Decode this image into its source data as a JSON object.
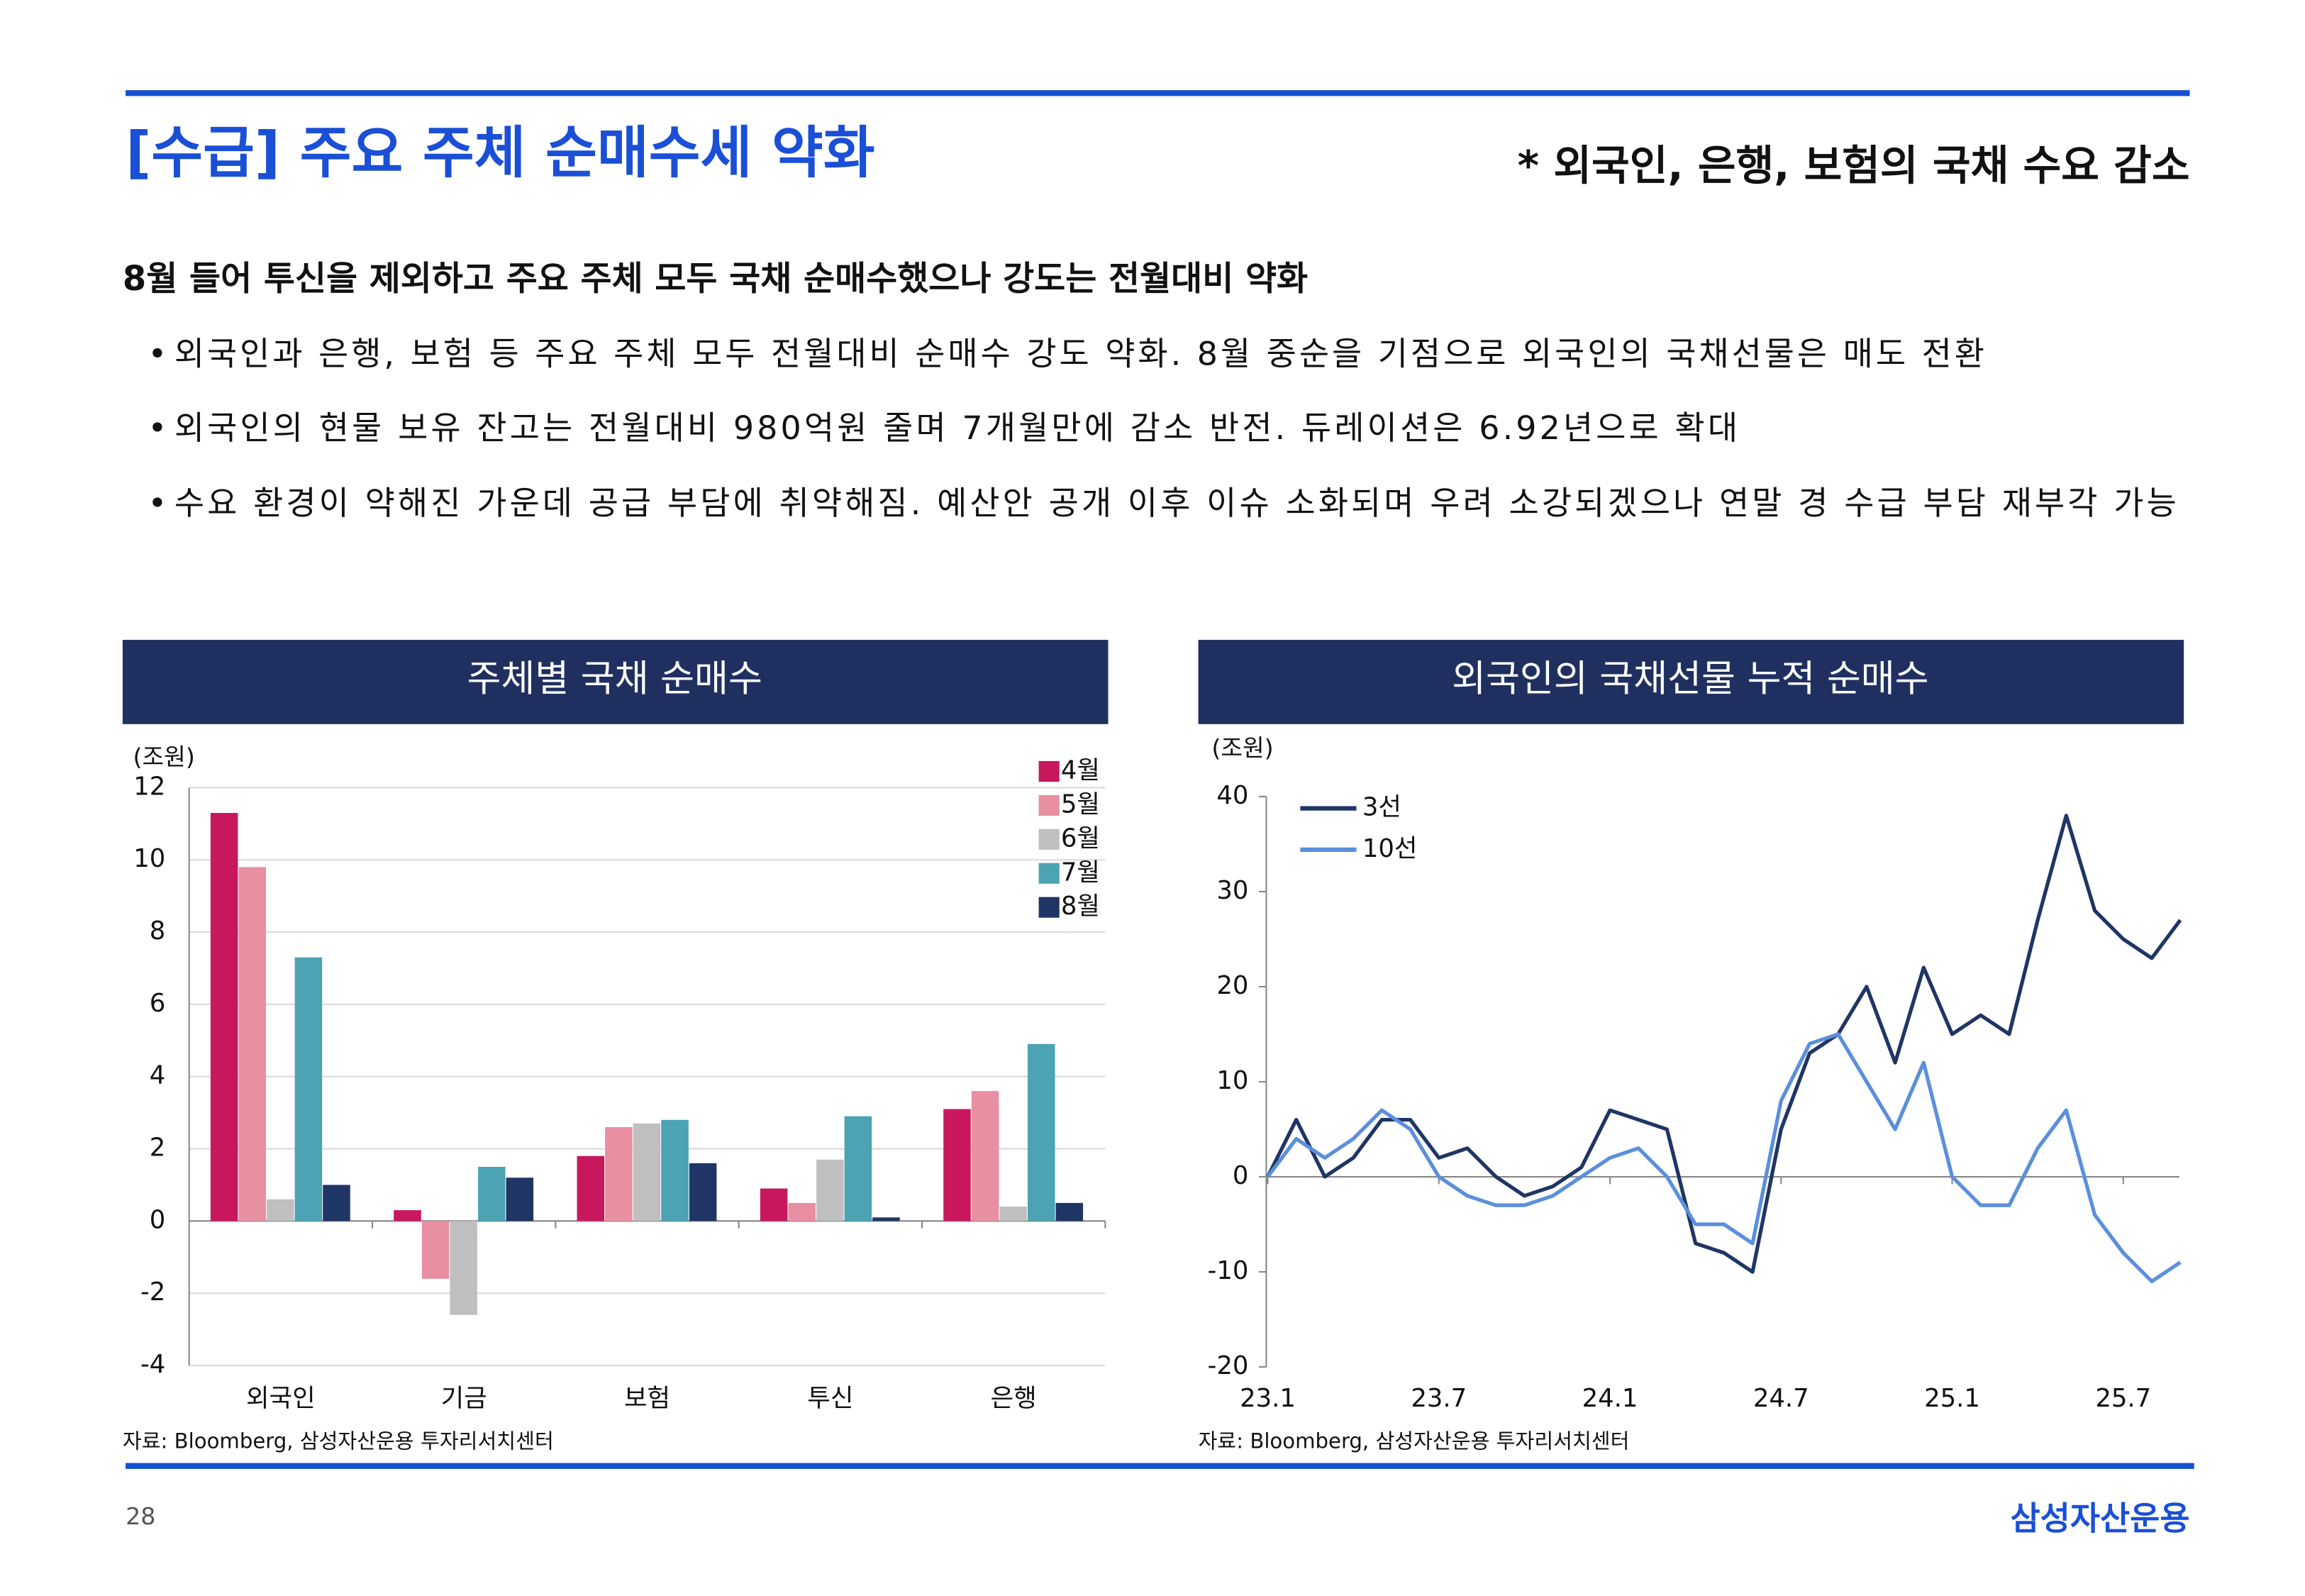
{
  "header": {
    "title": "[수급] 주요 주체 순매수세 약화",
    "note": "* 외국인, 은행, 보험의 국채 수요 감소"
  },
  "summary": {
    "heading": "8월 들어 투신을 제외하고 주요 주체 모두 국채 순매수했으나 강도는 전월대비 약화",
    "bullets": [
      "외국인과 은행, 보험 등 주요 주체 모두 전월대비 순매수 강도 약화. 8월 중순을 기점으로 외국인의 국채선물은 매도 전환",
      "외국인의 현물 보유 잔고는 전월대비 980억원 줄며 7개월만에 감소 반전. 듀레이션은 6.92년으로 확대",
      "수요 환경이 약해진 가운데 공급 부담에 취약해짐. 예산안 공개 이후 이슈 소화되며 우려 소강되겠으나 연말 경 수급 부담 재부각 가능"
    ]
  },
  "page_number": "28",
  "logo": "삼성자산운용",
  "chart_data": [
    {
      "type": "bar",
      "title": "주체별 국채 순매수",
      "y_label": "(조원)",
      "source": "자료: Bloomberg, 삼성자산운용 투자리서치센터",
      "categories": [
        "외국인",
        "기금",
        "보험",
        "투신",
        "은행"
      ],
      "series": [
        {
          "name": "4월",
          "color": "#c8175d",
          "values": [
            11.3,
            0.3,
            1.8,
            0.9,
            3.1
          ]
        },
        {
          "name": "5월",
          "color": "#e88fa2",
          "values": [
            9.8,
            -1.6,
            2.6,
            0.5,
            3.6
          ]
        },
        {
          "name": "6월",
          "color": "#bfbfbf",
          "values": [
            0.6,
            -2.6,
            2.7,
            1.7,
            0.4
          ]
        },
        {
          "name": "7월",
          "color": "#4ba3b3",
          "values": [
            7.3,
            1.5,
            2.8,
            2.9,
            4.9
          ]
        },
        {
          "name": "8월",
          "color": "#1f3565",
          "values": [
            1.0,
            1.2,
            1.6,
            0.1,
            0.5
          ]
        }
      ],
      "ylim": [
        -4,
        12
      ],
      "yticks": [
        -4,
        -2,
        0,
        2,
        4,
        6,
        8,
        10,
        12
      ],
      "grid": true,
      "legend": "top-right"
    },
    {
      "type": "line",
      "title": "외국인의 국채선물 누적 순매수",
      "y_label": "(조원)",
      "source": "자료: Bloomberg, 삼성자산운용 투자리서치센터",
      "categories": [
        "23.1",
        null,
        null,
        null,
        null,
        null,
        "23.7",
        null,
        null,
        null,
        null,
        null,
        "24.1",
        null,
        null,
        null,
        null,
        null,
        "24.7",
        null,
        null,
        null,
        null,
        null,
        "25.1",
        null,
        null,
        null,
        null,
        null,
        "25.7",
        null,
        null
      ],
      "series": [
        {
          "name": "3선",
          "color": "#1f3565",
          "values": [
            0,
            6,
            0,
            2,
            6,
            6,
            2,
            3,
            0,
            -2,
            -1,
            1,
            7,
            6,
            5,
            -7,
            -8,
            -10,
            5,
            13,
            15,
            20,
            12,
            22,
            15,
            17,
            15,
            27,
            38,
            28,
            25,
            23,
            27
          ]
        },
        {
          "name": "10선",
          "color": "#5b8fdc",
          "values": [
            0,
            4,
            2,
            4,
            7,
            5,
            0,
            -2,
            -3,
            -3,
            -2,
            0,
            2,
            3,
            0,
            -5,
            -5,
            -7,
            8,
            14,
            15,
            10,
            5,
            12,
            0,
            -3,
            -3,
            3,
            7,
            -4,
            -8,
            -11,
            -9
          ]
        }
      ],
      "ylim": [
        -20,
        40
      ],
      "yticks": [
        -20,
        -10,
        0,
        10,
        20,
        30,
        40
      ],
      "legend": "top-left"
    }
  ]
}
